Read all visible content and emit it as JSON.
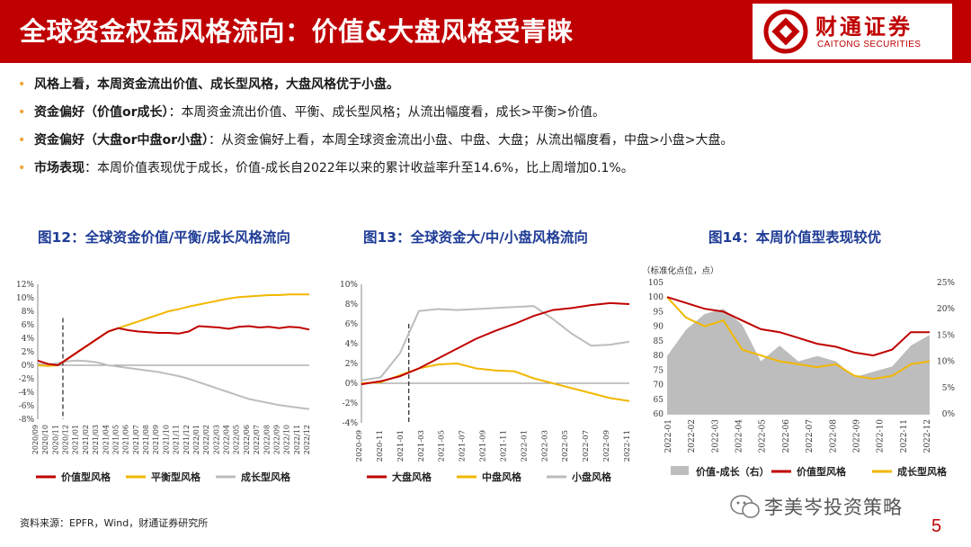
{
  "header": {
    "title": "全球资金权益风格流向：价值&大盘风格受青睐",
    "logo_cn": "财通证券",
    "logo_en": "CAITONG SECURITIES",
    "color": "#c00000"
  },
  "bullets": [
    {
      "bold": "风格上看，本周资金流出价值、成长型风格，大盘风格优于小盘。",
      "text": ""
    },
    {
      "bold": "资金偏好（价值or成长）",
      "text": "：本周资金流出价值、平衡、成长型风格；从流出幅度看，成长>平衡>价值。"
    },
    {
      "bold": "资金偏好（大盘or中盘or小盘）",
      "text": "：从资金偏好上看，本周全球资金流出小盘、中盘、大盘；从流出幅度看，中盘>小盘>大盘。"
    },
    {
      "bold": "市场表现",
      "text": "：本周价值表现优于成长，价值-成长自2022年以来的累计收益率升至14.6%，比上周增加0.1%。"
    }
  ],
  "figures": {
    "fig12_title": "图12：全球资金价值/平衡/成长风格流向",
    "fig13_title": "图13：全球资金大/中/小盘风格流向",
    "fig14_title": "图14：本周价值型表现较优"
  },
  "chart_data": [
    {
      "type": "line",
      "title": "图12：全球资金价值/平衡/成长风格流向",
      "x_ticks": [
        "2020/09",
        "2020/10",
        "2020/11",
        "2020/12",
        "2021/01",
        "2021/02",
        "2021/03",
        "2021/04",
        "2021/05",
        "2021/06",
        "2021/07",
        "2021/08",
        "2021/09",
        "2021/10",
        "2021/11",
        "2021/12",
        "2022/01",
        "2022/02",
        "2022/03",
        "2022/04",
        "2022/05",
        "2022/06",
        "2022/07",
        "2022/08",
        "2022/09",
        "2022/10",
        "2022/11",
        "2022/12"
      ],
      "y_ticks": [
        "12%",
        "10%",
        "8%",
        "6%",
        "4%",
        "2%",
        "0%",
        "-2%",
        "-4%",
        "-6%",
        "-8%"
      ],
      "ylim": [
        -8,
        12
      ],
      "vline_index": 2.5,
      "series": [
        {
          "name": "价值型风格",
          "color": "#c00000",
          "values": [
            0.7,
            0.2,
            0,
            1,
            2,
            3,
            4,
            5,
            5.5,
            5.2,
            5,
            4.9,
            4.8,
            4.8,
            4.7,
            5,
            5.8,
            5.7,
            5.6,
            5.4,
            5.7,
            5.8,
            5.6,
            5.7,
            5.5,
            5.7,
            5.6,
            5.3
          ]
        },
        {
          "name": "平衡型风格",
          "color": "#f2b700",
          "values": [
            0,
            -0.1,
            0,
            1,
            2,
            3,
            4,
            5,
            5.5,
            6,
            6.5,
            7,
            7.5,
            8,
            8.3,
            8.7,
            9,
            9.3,
            9.6,
            9.9,
            10.1,
            10.2,
            10.3,
            10.4,
            10.4,
            10.5,
            10.5,
            10.5
          ]
        },
        {
          "name": "成长型风格",
          "color": "#bdbdbd",
          "values": [
            0.2,
            0.1,
            0.3,
            0.6,
            0.7,
            0.6,
            0.4,
            0,
            -0.2,
            -0.4,
            -0.6,
            -0.8,
            -1,
            -1.3,
            -1.6,
            -2,
            -2.5,
            -3,
            -3.5,
            -4,
            -4.5,
            -5,
            -5.3,
            -5.6,
            -5.9,
            -6.1,
            -6.3,
            -6.5
          ]
        }
      ]
    },
    {
      "type": "line",
      "title": "图13：全球资金大/中/小盘风格流向",
      "x_ticks": [
        "2020-09",
        "2020-11",
        "2021-01",
        "2021-03",
        "2021-05",
        "2021-07",
        "2021-09",
        "2021-11",
        "2022-01",
        "2022-03",
        "2022-05",
        "2022-07",
        "2022-09",
        "2022-11"
      ],
      "y_ticks": [
        "10%",
        "8%",
        "6%",
        "4%",
        "2%",
        "0%",
        "-2%",
        "-4%"
      ],
      "ylim": [
        -4,
        10
      ],
      "vline_index": 2.3,
      "series": [
        {
          "name": "大盘风格",
          "color": "#c00000",
          "values": [
            -0.1,
            0.2,
            0.7,
            1.5,
            2.5,
            3.5,
            4.5,
            5.3,
            6,
            6.8,
            7.4,
            7.6,
            7.9,
            8.1,
            8
          ]
        },
        {
          "name": "中盘风格",
          "color": "#f2b700",
          "values": [
            0,
            0.1,
            0.8,
            1.5,
            1.9,
            2,
            1.5,
            1.3,
            1.2,
            0.5,
            0,
            -0.5,
            -1,
            -1.5,
            -1.8
          ]
        },
        {
          "name": "小盘风格",
          "color": "#bdbdbd",
          "values": [
            0.3,
            0.6,
            3,
            7.3,
            7.5,
            7.4,
            7.5,
            7.6,
            7.7,
            7.8,
            6.5,
            5,
            3.8,
            3.9,
            4.2
          ]
        }
      ]
    },
    {
      "type": "line",
      "title": "图14：本周价值型表现较优",
      "unit_label": "（标准化点位，点）",
      "x_ticks": [
        "2022-01",
        "2022-02",
        "2022-03",
        "2022-04",
        "2022-05",
        "2022-06",
        "2022-07",
        "2022-08",
        "2022-09",
        "2022-10",
        "2022-11",
        "2022-12"
      ],
      "y_ticks_left": [
        "105",
        "100",
        "95",
        "90",
        "85",
        "80",
        "75",
        "70",
        "65",
        "60"
      ],
      "y_ticks_right": [
        "25%",
        "20%",
        "15%",
        "10%",
        "5%",
        "0%"
      ],
      "ylim_left": [
        60,
        105
      ],
      "ylim_right": [
        0,
        25
      ],
      "series": [
        {
          "name": "价值-成长（右）",
          "color": "#bdbdbd",
          "axis": "right",
          "values": [
            11,
            16,
            19,
            20,
            17,
            10,
            13,
            10,
            11,
            10,
            7,
            8,
            9,
            13,
            15
          ]
        },
        {
          "name": "价值型风格",
          "color": "#c00000",
          "axis": "left",
          "values": [
            100,
            98,
            96,
            95,
            92,
            89,
            88,
            86,
            84,
            83,
            81,
            80,
            82,
            88,
            88
          ]
        },
        {
          "name": "成长型风格",
          "color": "#f2b700",
          "axis": "left",
          "values": [
            100,
            93,
            90,
            92,
            82,
            80,
            78,
            77,
            76,
            77,
            73,
            72,
            73,
            77,
            78
          ]
        }
      ]
    }
  ],
  "source": "资料来源：EPFR，Wind，财通证券研究所",
  "watermark": "李美岑投资策略",
  "page_number": "5"
}
